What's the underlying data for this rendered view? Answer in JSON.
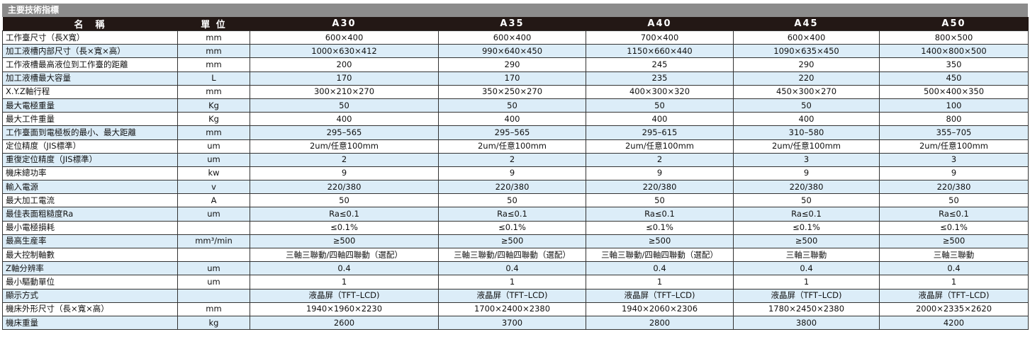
{
  "title": "主要技術指標",
  "headers": [
    "名　稱",
    "單 位",
    "A30",
    "A35",
    "A40",
    "A45",
    "A50"
  ],
  "rows": [
    [
      "工作臺尺寸（長X寬）",
      "mm",
      "600×400",
      "600×400",
      "700×400",
      "600×400",
      "800×500"
    ],
    [
      "加工液槽内部尺寸（長×寬×高）",
      "mm",
      "1000×630×412",
      "990×640×450",
      "1150×660×440",
      "1090×635×450",
      "1400×800×500"
    ],
    [
      "工作液槽最高液位到工作臺的距離",
      "mm",
      "200",
      "290",
      "245",
      "290",
      "350"
    ],
    [
      "加工液槽最大容量",
      "L",
      "170",
      "170",
      "235",
      "220",
      "450"
    ],
    [
      "X.Y.Z軸行程",
      "mm",
      "300×210×270",
      "350×250×270",
      "400×300×320",
      "450×300×270",
      "500×400×350"
    ],
    [
      "最大電極重量",
      "Kg",
      "50",
      "50",
      "50",
      "50",
      "100"
    ],
    [
      "最大工件重量",
      "Kg",
      "400",
      "400",
      "400",
      "400",
      "800"
    ],
    [
      "工作臺面到電極板的最小、最大距離",
      "mm",
      "295–565",
      "295–565",
      "295–615",
      "310–580",
      "355–705"
    ],
    [
      "定位精度（JIS標準）",
      "um",
      "2um/任意100mm",
      "2um/任意100mm",
      "2um/任意100mm",
      "2um/任意100mm",
      "2um/任意100mm"
    ],
    [
      "重復定位精度（JIS標準）",
      "um",
      "2",
      "2",
      "2",
      "3",
      "3"
    ],
    [
      "機床總功率",
      "kw",
      "9",
      "9",
      "9",
      "9",
      "9"
    ],
    [
      "輸入電源",
      "v",
      "220/380",
      "220/380",
      "220/380",
      "220/380",
      "220/380"
    ],
    [
      "最大加工電流",
      "A",
      "50",
      "50",
      "50",
      "50",
      "50"
    ],
    [
      "最佳表面粗糙度Ra",
      "um",
      "Ra≤0.1",
      "Ra≤0.1",
      "Ra≤0.1",
      "Ra≤0.1",
      "Ra≤0.1"
    ],
    [
      "最小電極損耗",
      "",
      "≤0.1%",
      "≤0.1%",
      "≤0.1%",
      "≤0.1%",
      "≤0.1%"
    ],
    [
      "最高生産率",
      "mm³/min",
      "≥500",
      "≥500",
      "≥500",
      "≥500",
      "≥500"
    ],
    [
      "最大控制軸數",
      "",
      "三軸三聯動/四軸四聯動（選配）",
      "三軸三聯動/四軸四聯動（選配）",
      "三軸三聯動/四軸四聯動（選配）",
      "三軸三聯動",
      "三軸三聯動"
    ],
    [
      "Z軸分辨率",
      "um",
      "0.4",
      "0.4",
      "0.4",
      "0.4",
      "0.4"
    ],
    [
      "最小驅動單位",
      "um",
      "1",
      "1",
      "1",
      "1",
      "1"
    ],
    [
      "顯示方式",
      "",
      "液晶屏（TFT–LCD)",
      "液晶屏（TFT–LCD)",
      "液晶屏（TFT–LCD)",
      "液晶屏（TFT–LCD)",
      "液晶屏（TFT–LCD)"
    ],
    [
      "機床外形尺寸（長×寬×高）",
      "mm",
      "1940×1960×2230",
      "1700×2400×2380",
      "1940×2060×2306",
      "1780×2450×2380",
      "2000×2335×2620"
    ],
    [
      "機床重量",
      "kg",
      "2600",
      "3700",
      "2800",
      "3800",
      "4200"
    ]
  ]
}
